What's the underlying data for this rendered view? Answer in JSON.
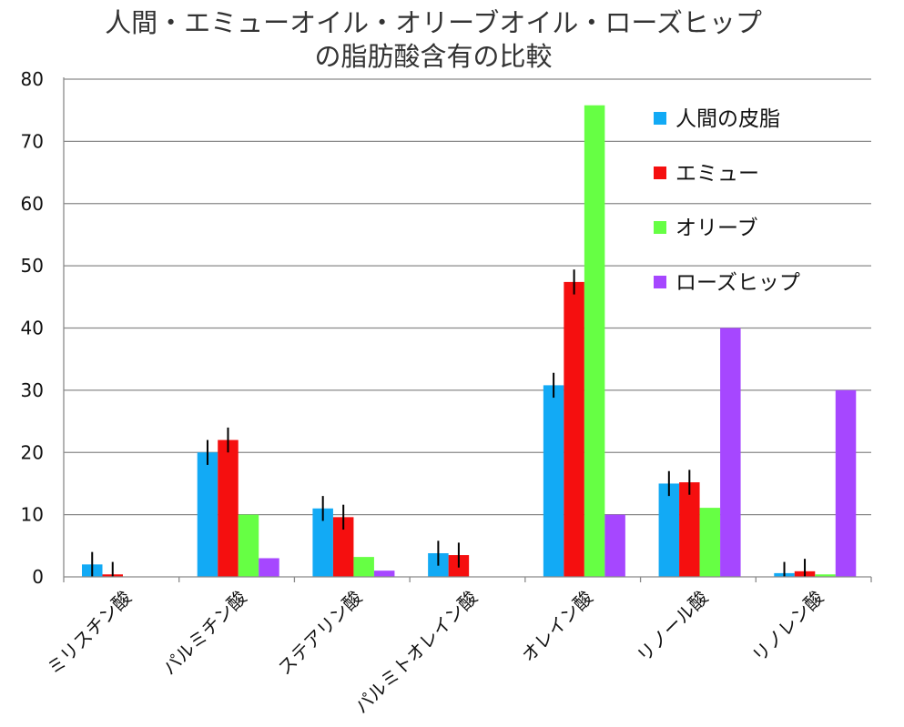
{
  "chart_data": {
    "type": "bar",
    "title_lines": [
      "人間・エミューオイル・オリーブオイル・ローズヒップ",
      "の脂肪酸含有の比較"
    ],
    "categories": [
      "ミリスチン酸",
      "パルミチン酸",
      "ステアリン酸",
      "パルミトオレイン酸",
      "オレイン酸",
      "リノール酸",
      "リノレン酸"
    ],
    "ylim": [
      0,
      80
    ],
    "yticks": [
      0,
      10,
      20,
      30,
      40,
      50,
      60,
      70,
      80
    ],
    "grid": true,
    "legend_position": "top-right",
    "series": [
      {
        "name": "人間の皮脂",
        "color": "#12aaf5",
        "values": [
          2,
          20,
          11,
          3.8,
          30.8,
          15,
          0.6
        ],
        "errors": [
          2,
          2,
          2,
          2,
          2,
          2,
          1.8
        ]
      },
      {
        "name": "エミュー",
        "color": "#f50f0f",
        "values": [
          0.4,
          22,
          9.6,
          3.5,
          47.4,
          15.2,
          0.9
        ],
        "errors": [
          2,
          2,
          2,
          2,
          2,
          2,
          2
        ]
      },
      {
        "name": "オリーブ",
        "color": "#66ff44",
        "values": [
          0,
          10,
          3.2,
          0,
          75.8,
          11.1,
          0.4
        ],
        "errors": null
      },
      {
        "name": "ローズヒップ",
        "color": "#a647ff",
        "values": [
          0,
          3,
          1,
          0,
          10,
          40,
          30
        ],
        "errors": null
      }
    ]
  }
}
